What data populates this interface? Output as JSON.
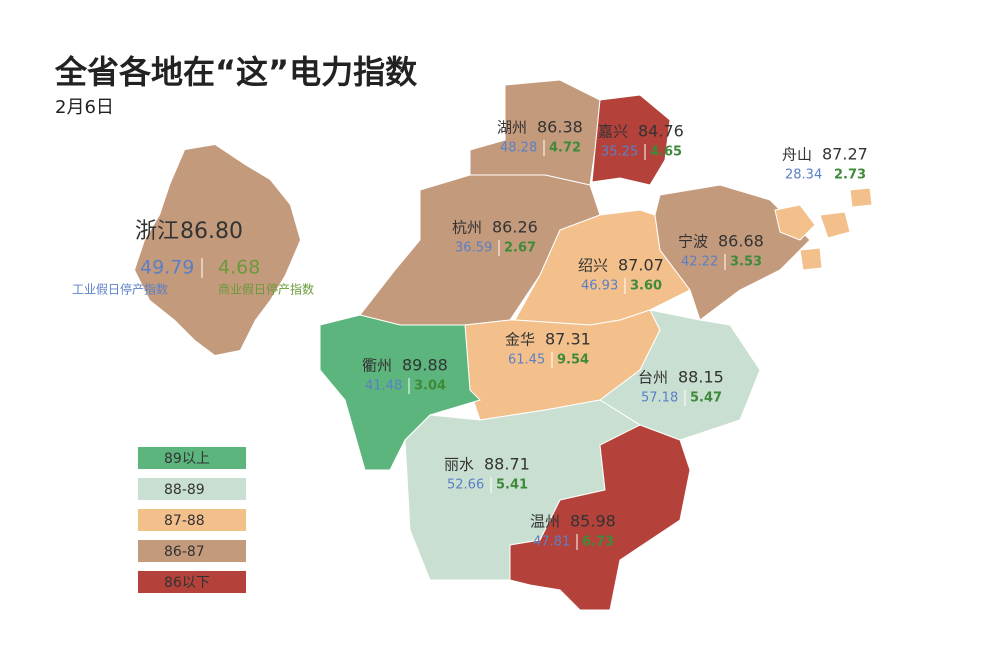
{
  "header": {
    "title": "全省各地在“这”电力指数",
    "date": "2月6日"
  },
  "province": {
    "name": "浙江",
    "index": "86.80",
    "industrial": "49.79",
    "commercial": "4.68",
    "industrial_label": "工业假日停产指数",
    "commercial_label": "商业假日停产指数"
  },
  "cities": [
    {
      "name": "湖州",
      "index": "86.38",
      "industrial": "48.28",
      "commercial": "4.72"
    },
    {
      "name": "嘉兴",
      "index": "84.76",
      "industrial": "35.25",
      "commercial": "4.65"
    },
    {
      "name": "舟山",
      "index": "87.27",
      "industrial": "28.34",
      "commercial": "2.73"
    },
    {
      "name": "杭州",
      "index": "86.26",
      "industrial": "36.59",
      "commercial": "2.67"
    },
    {
      "name": "宁波",
      "index": "86.68",
      "industrial": "42.22",
      "commercial": "3.53"
    },
    {
      "name": "绍兴",
      "index": "87.07",
      "industrial": "46.93",
      "commercial": "3.60"
    },
    {
      "name": "金华",
      "index": "87.31",
      "industrial": "61.45",
      "commercial": "9.54"
    },
    {
      "name": "衢州",
      "index": "89.88",
      "industrial": "41.48",
      "commercial": "3.04"
    },
    {
      "name": "台州",
      "index": "88.15",
      "industrial": "57.18",
      "commercial": "5.47"
    },
    {
      "name": "丽水",
      "index": "88.71",
      "industrial": "52.66",
      "commercial": "5.41"
    },
    {
      "name": "温州",
      "index": "85.98",
      "industrial": "47.81",
      "commercial": "6.73"
    }
  ],
  "legend": [
    "89以上",
    "88-89",
    "87-88",
    "86-87",
    "86以下"
  ]
}
